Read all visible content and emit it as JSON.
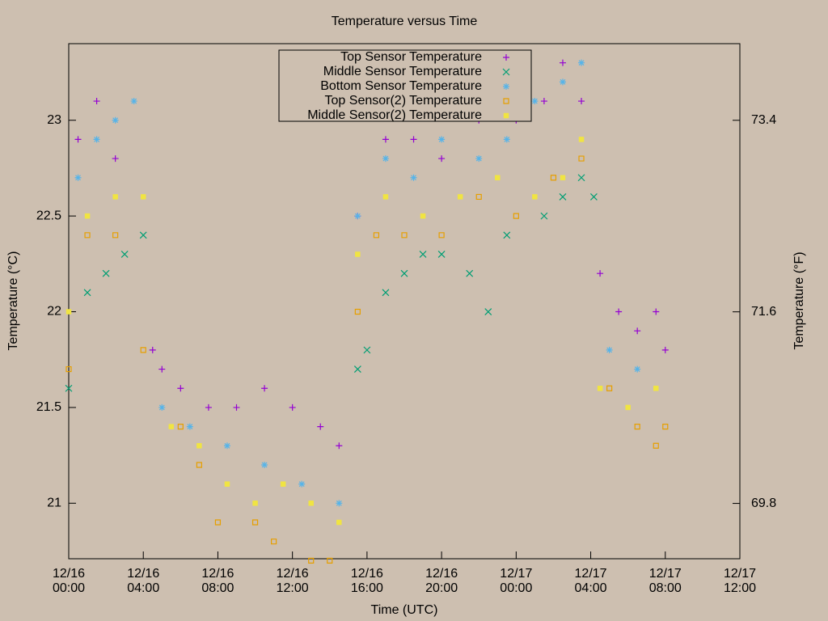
{
  "chart_data": {
    "type": "scatter",
    "title": "Temperature versus Time",
    "x_label": "Time (UTC)",
    "y_label": "Temperature (°C)",
    "y2_label": "Temperature (°F)",
    "xlim": [
      "12/16 00:00",
      "12/17 12:00"
    ],
    "xticks": [
      {
        "value": "12/16 00:00",
        "label": "12/16\n00:00"
      },
      {
        "value": "12/16 04:00",
        "label": "12/16\n04:00"
      },
      {
        "value": "12/16 08:00",
        "label": "12/16\n08:00"
      },
      {
        "value": "12/16 12:00",
        "label": "12/16\n12:00"
      },
      {
        "value": "12/16 16:00",
        "label": "12/16\n16:00"
      },
      {
        "value": "12/16 20:00",
        "label": "12/16\n20:00"
      },
      {
        "value": "12/17 00:00",
        "label": "12/17\n00:00"
      },
      {
        "value": "12/17 04:00",
        "label": "12/17\n04:00"
      },
      {
        "value": "12/17 08:00",
        "label": "12/17\n08:00"
      },
      {
        "value": "12/17 12:00",
        "label": "12/17\n12:00"
      }
    ],
    "ylim": [
      20.71,
      23.4
    ],
    "yticks": [
      21,
      21.5,
      22,
      22.5,
      23
    ],
    "y2lim": [
      69.28,
      74.12
    ],
    "y2ticks": [
      69.8,
      71.6,
      73.4
    ],
    "legend_position": "top",
    "series": [
      {
        "name": "Top Sensor Temperature",
        "color": "#9400d3",
        "marker": "plus",
        "x": [
          "12/16 00:30",
          "12/16 01:30",
          "12/16 02:30",
          "12/16 04:30",
          "12/16 05:00",
          "12/16 06:00",
          "12/16 07:30",
          "12/16 09:00",
          "12/16 10:30",
          "12/16 12:00",
          "12/16 13:30",
          "12/16 14:30",
          "12/16 15:30",
          "12/16 17:00",
          "12/16 18:30",
          "12/16 20:00",
          "12/16 22:00",
          "12/17 00:00",
          "12/17 01:30",
          "12/17 02:30",
          "12/17 03:30",
          "12/17 04:30",
          "12/17 05:30",
          "12/17 06:30",
          "12/17 07:30",
          "12/17 08:00"
        ],
        "values": [
          22.9,
          23.1,
          22.8,
          21.8,
          21.7,
          21.6,
          21.5,
          21.5,
          21.6,
          21.5,
          21.4,
          21.3,
          22.5,
          22.9,
          22.9,
          22.8,
          23.0,
          23.0,
          23.1,
          23.3,
          23.1,
          22.2,
          22.0,
          21.9,
          22.0,
          21.8
        ]
      },
      {
        "name": "Middle Sensor Temperature",
        "color": "#009e73",
        "marker": "cross",
        "x": [
          "12/16 00:00",
          "12/16 01:00",
          "12/16 02:00",
          "12/16 03:00",
          "12/16 04:00",
          "12/16 15:30",
          "12/16 16:00",
          "12/16 17:00",
          "12/16 18:00",
          "12/16 19:00",
          "12/16 20:00",
          "12/16 21:30",
          "12/16 22:30",
          "12/16 23:30",
          "12/17 01:30",
          "12/17 02:30",
          "12/17 03:30",
          "12/17 04:10"
        ],
        "values": [
          21.6,
          22.1,
          22.2,
          22.3,
          22.4,
          21.7,
          21.8,
          22.1,
          22.2,
          22.3,
          22.3,
          22.2,
          22.0,
          22.4,
          22.5,
          22.6,
          22.7,
          22.6
        ]
      },
      {
        "name": "Bottom Sensor Temperature",
        "color": "#56b4e9",
        "marker": "star",
        "x": [
          "12/16 00:30",
          "12/16 01:30",
          "12/16 02:30",
          "12/16 03:30",
          "12/16 05:00",
          "12/16 06:30",
          "12/16 08:30",
          "12/16 10:30",
          "12/16 12:30",
          "12/16 14:30",
          "12/16 15:30",
          "12/16 17:00",
          "12/16 18:30",
          "12/16 20:00",
          "12/16 22:00",
          "12/16 23:30",
          "12/17 01:00",
          "12/17 02:30",
          "12/17 03:30",
          "12/17 05:00",
          "12/17 06:30"
        ],
        "values": [
          22.7,
          22.9,
          23.0,
          23.1,
          21.5,
          21.4,
          21.3,
          21.2,
          21.1,
          21.0,
          22.5,
          22.8,
          22.7,
          22.9,
          22.8,
          22.9,
          23.1,
          23.2,
          23.3,
          21.8,
          21.7
        ]
      },
      {
        "name": "Top Sensor(2) Temperature",
        "color": "#e69f00",
        "marker": "square",
        "x": [
          "12/16 00:00",
          "12/16 01:00",
          "12/16 02:30",
          "12/16 04:00",
          "12/16 06:00",
          "12/16 07:00",
          "12/16 08:00",
          "12/16 10:00",
          "12/16 11:00",
          "12/16 13:00",
          "12/16 14:00",
          "12/16 15:30",
          "12/16 16:30",
          "12/16 18:00",
          "12/16 20:00",
          "12/16 22:00",
          "12/17 00:00",
          "12/17 02:00",
          "12/17 03:30",
          "12/17 05:00",
          "12/17 06:30",
          "12/17 07:30",
          "12/17 08:00"
        ],
        "values": [
          21.7,
          22.4,
          22.4,
          21.8,
          21.4,
          21.2,
          20.9,
          20.9,
          20.8,
          20.7,
          20.7,
          22.0,
          22.4,
          22.4,
          22.4,
          22.6,
          22.5,
          22.7,
          22.8,
          21.6,
          21.4,
          21.3,
          21.4
        ]
      },
      {
        "name": "Middle Sensor(2) Temperature",
        "color": "#f0e442",
        "marker": "filled-square",
        "x": [
          "12/16 00:00",
          "12/16 01:00",
          "12/16 02:30",
          "12/16 04:00",
          "12/16 05:30",
          "12/16 07:00",
          "12/16 08:30",
          "12/16 10:00",
          "12/16 11:30",
          "12/16 13:00",
          "12/16 14:30",
          "12/16 15:30",
          "12/16 17:00",
          "12/16 19:00",
          "12/16 21:00",
          "12/16 23:00",
          "12/17 01:00",
          "12/17 02:30",
          "12/17 03:30",
          "12/17 04:30",
          "12/17 06:00",
          "12/17 07:30"
        ],
        "values": [
          22.0,
          22.5,
          22.6,
          22.6,
          21.4,
          21.3,
          21.1,
          21.0,
          21.1,
          21.0,
          20.9,
          22.3,
          22.6,
          22.5,
          22.6,
          22.7,
          22.6,
          22.7,
          22.9,
          21.6,
          21.5,
          21.6
        ]
      }
    ]
  }
}
